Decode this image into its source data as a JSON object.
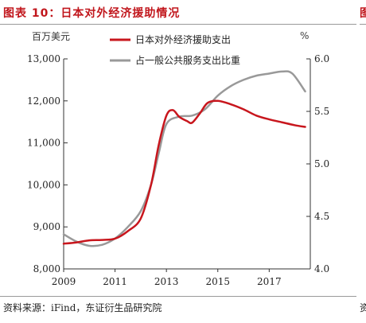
{
  "figure": {
    "title": "图表 10：日本对外经济援助情况",
    "next_title": "图",
    "source": "资料来源：iFind，东证衍生品研究院",
    "next_source": "资"
  },
  "chart_data": {
    "type": "line",
    "left_unit": "百万美元",
    "right_unit": "%",
    "y_left": {
      "range": [
        8000,
        13000
      ],
      "ticks": [
        8000,
        9000,
        10000,
        11000,
        12000,
        13000
      ],
      "tick_labels": [
        "8,000",
        "9,000",
        "10,000",
        "11,000",
        "12,000",
        "13,000"
      ]
    },
    "y_right": {
      "range": [
        4.0,
        6.0
      ],
      "ticks": [
        4.0,
        4.5,
        5.0,
        5.5,
        6.0
      ],
      "tick_labels": [
        "4.0",
        "4.5",
        "5.0",
        "5.5",
        "6.0"
      ]
    },
    "x": {
      "range": [
        2009,
        2018.6
      ],
      "ticks": [
        2009,
        2011,
        2013,
        2015,
        2017
      ],
      "tick_labels": [
        "2009",
        "2011",
        "2013",
        "2015",
        "2017"
      ]
    },
    "legend_position": "top",
    "grid": false,
    "series": [
      {
        "name": "日本对外经济援助支出",
        "axis": "left",
        "color": "#c8161d",
        "x": [
          2009.0,
          2009.5,
          2010.0,
          2010.5,
          2011.0,
          2011.5,
          2012.0,
          2012.4,
          2012.7,
          2013.0,
          2013.25,
          2013.5,
          2013.8,
          2014.0,
          2014.3,
          2014.6,
          2015.0,
          2015.5,
          2016.0,
          2016.5,
          2017.0,
          2017.5,
          2018.0,
          2018.4
        ],
        "values": [
          8600,
          8630,
          8680,
          8690,
          8720,
          8900,
          9200,
          10000,
          10950,
          11650,
          11780,
          11620,
          11520,
          11480,
          11700,
          11950,
          12000,
          11920,
          11800,
          11650,
          11560,
          11490,
          11420,
          11380
        ]
      },
      {
        "name": "占一般公共服务支出比重",
        "axis": "right",
        "color": "#999999",
        "x": [
          2009.0,
          2009.5,
          2010.0,
          2010.5,
          2011.0,
          2011.5,
          2012.0,
          2012.4,
          2012.7,
          2013.0,
          2013.5,
          2014.0,
          2014.5,
          2015.0,
          2015.5,
          2016.0,
          2016.5,
          2017.0,
          2017.5,
          2017.9,
          2018.4
        ],
        "values": [
          4.33,
          4.26,
          4.22,
          4.23,
          4.29,
          4.4,
          4.55,
          4.8,
          5.1,
          5.38,
          5.45,
          5.46,
          5.52,
          5.65,
          5.74,
          5.8,
          5.84,
          5.86,
          5.88,
          5.86,
          5.69
        ]
      }
    ]
  }
}
